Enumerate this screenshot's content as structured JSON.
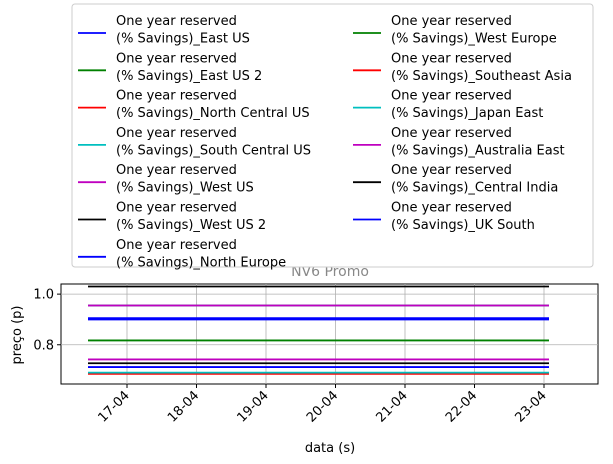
{
  "chart_data": {
    "type": "line",
    "title": "NV6 Promo",
    "xlabel": "data (s)",
    "ylabel": "preço (p)",
    "x_ticks": [
      "17-04",
      "18-04",
      "19-04",
      "20-04",
      "21-04",
      "22-04",
      "23-04"
    ],
    "x_range": [
      "16-04 ~12:00",
      "23-04 ~12:00"
    ],
    "ylim": [
      0.645,
      1.04
    ],
    "y_ticks": [
      1.0,
      0.8
    ],
    "y_tick_labels": [
      "1.0",
      "0.8"
    ],
    "grid": true,
    "legend_position": "top",
    "legend_columns": 2,
    "series": [
      {
        "name": "One year reserved\n(% Savings)_East US",
        "color": "#0000ff",
        "value": 0.9
      },
      {
        "name": "One year reserved\n(% Savings)_East US 2",
        "color": "#008000",
        "value": 0.817
      },
      {
        "name": "One year reserved\n(% Savings)_North Central US",
        "color": "#ff0000",
        "value": 0.685
      },
      {
        "name": "One year reserved\n(% Savings)_South Central US",
        "color": "#00bfbf",
        "value": 0.69
      },
      {
        "name": "One year reserved\n(% Savings)_West US",
        "color": "#bf00bf",
        "value": 0.742
      },
      {
        "name": "One year reserved\n(% Savings)_West US 2",
        "color": "#000000",
        "value": 0.727
      },
      {
        "name": "One year reserved\n(% Savings)_North Europe",
        "color": "#0000ff",
        "value": 0.712
      },
      {
        "name": "One year reserved\n(% Savings)_West Europe",
        "color": "#008000",
        "value": 0.955
      },
      {
        "name": "One year reserved\n(% Savings)_Southeast Asia",
        "color": "#ff0000",
        "value": 0.955
      },
      {
        "name": "One year reserved\n(% Savings)_Japan East",
        "color": "#00bfbf",
        "value": 0.955
      },
      {
        "name": "One year reserved\n(% Savings)_Australia East",
        "color": "#bf00bf",
        "value": 0.955
      },
      {
        "name": "One year reserved\n(% Savings)_Central India",
        "color": "#000000",
        "value": 1.03
      },
      {
        "name": "One year reserved\n(% Savings)_UK South",
        "color": "#0000ff",
        "value": 0.905
      }
    ]
  }
}
